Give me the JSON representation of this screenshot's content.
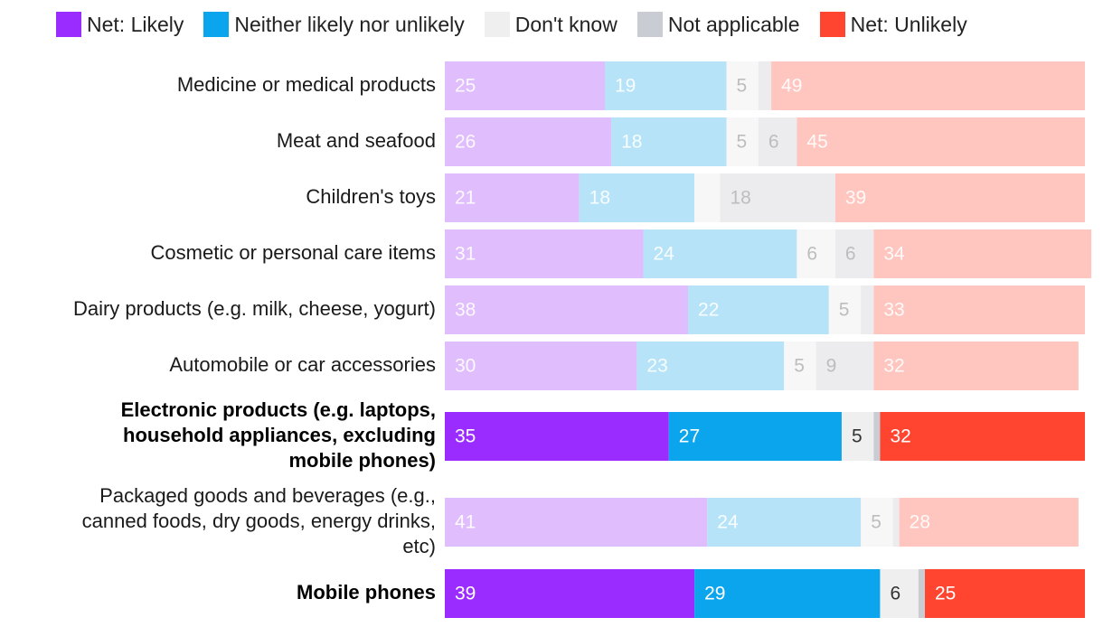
{
  "chart_data": {
    "type": "bar",
    "orientation": "horizontal",
    "stacked": true,
    "legend_position": "top",
    "series": [
      {
        "name": "Net: Likely",
        "color": "#9b2cff",
        "light_color": "#e0bdfc",
        "values": [
          25,
          26,
          21,
          31,
          38,
          30,
          35,
          41,
          39
        ]
      },
      {
        "name": "Neither likely nor unlikely",
        "color": "#0aa5ec",
        "light_color": "#b6e3f8",
        "values": [
          19,
          18,
          18,
          24,
          22,
          23,
          27,
          24,
          29
        ]
      },
      {
        "name": "Don't know",
        "color": "#efefef",
        "light_color": "#f7f7f7",
        "values": [
          5,
          5,
          4,
          6,
          5,
          5,
          5,
          5,
          6
        ]
      },
      {
        "name": "Not applicable",
        "color": "#c9ccd3",
        "light_color": "#ececef",
        "values": [
          2,
          6,
          18,
          6,
          2,
          9,
          1,
          1,
          1
        ]
      },
      {
        "name": "Net: Unlikely",
        "color": "#ff4530",
        "light_color": "#ffc6bf",
        "values": [
          49,
          45,
          39,
          34,
          33,
          32,
          32,
          28,
          25
        ]
      }
    ],
    "value_labels": [
      [
        "25",
        "19",
        "5",
        "",
        "49"
      ],
      [
        "26",
        "18",
        "5",
        "6",
        "45"
      ],
      [
        "21",
        "18",
        "",
        "18",
        "39"
      ],
      [
        "31",
        "24",
        "6",
        "6",
        "34"
      ],
      [
        "38",
        "22",
        "5",
        "",
        "33"
      ],
      [
        "30",
        "23",
        "5",
        "9",
        "32"
      ],
      [
        "35",
        "27",
        "5",
        "",
        "32"
      ],
      [
        "41",
        "24",
        "5",
        "",
        "28"
      ],
      [
        "39",
        "29",
        "6",
        "",
        "25"
      ]
    ],
    "categories": [
      {
        "label": [
          "Medicine or medical products"
        ],
        "highlight": false
      },
      {
        "label": [
          "Meat and seafood"
        ],
        "highlight": false
      },
      {
        "label": [
          "Children's toys"
        ],
        "highlight": false
      },
      {
        "label": [
          "Cosmetic or personal care items"
        ],
        "highlight": false
      },
      {
        "label": [
          "Dairy products (e.g. milk, cheese, yogurt)"
        ],
        "highlight": false
      },
      {
        "label": [
          "Automobile or car accessories"
        ],
        "highlight": false
      },
      {
        "label": [
          "Electronic products (e.g. laptops,",
          "household appliances, excluding",
          "mobile phones)"
        ],
        "highlight": true
      },
      {
        "label": [
          "Packaged goods and beverages (e.g.,",
          "canned foods, dry goods, energy drinks,",
          "etc)"
        ],
        "highlight": false
      },
      {
        "label": [
          "Mobile phones"
        ],
        "highlight": true
      }
    ]
  }
}
